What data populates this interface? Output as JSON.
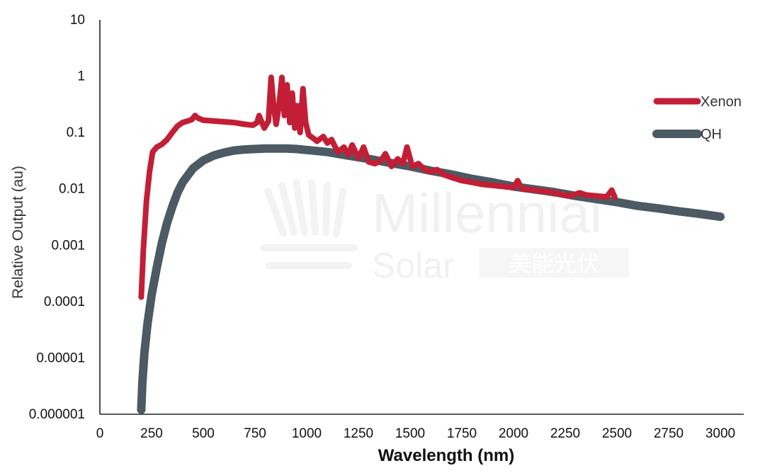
{
  "watermark": {
    "brand": "Millennial",
    "sub": "Solar",
    "cn": "美能光伏"
  },
  "chart_data": {
    "type": "line",
    "xlabel": "Wavelength (nm)",
    "ylabel": "Relative Output (au)",
    "xlim": [
      0,
      3000
    ],
    "xticks": [
      0,
      250,
      500,
      750,
      1000,
      1250,
      1500,
      1750,
      2000,
      2250,
      2500,
      2750,
      3000
    ],
    "ylim": [
      1e-06,
      10
    ],
    "yscale": "log",
    "yticks": [
      {
        "value": 10,
        "label": "10"
      },
      {
        "value": 1,
        "label": "1"
      },
      {
        "value": 0.1,
        "label": "0.1"
      },
      {
        "value": 0.01,
        "label": "0.01"
      },
      {
        "value": 0.001,
        "label": "0.001"
      },
      {
        "value": 0.0001,
        "label": "0.0001"
      },
      {
        "value": 1e-05,
        "label": "0.00001"
      },
      {
        "value": 1e-06,
        "label": "0.000001"
      }
    ],
    "grid": false,
    "legend_position": "right",
    "series": [
      {
        "name": "Xenon",
        "color": "#c21f36",
        "points": [
          [
            200,
            0.00012
          ],
          [
            210,
            0.0008
          ],
          [
            225,
            0.006
          ],
          [
            240,
            0.02
          ],
          [
            255,
            0.045
          ],
          [
            275,
            0.055
          ],
          [
            300,
            0.062
          ],
          [
            325,
            0.075
          ],
          [
            350,
            0.1
          ],
          [
            375,
            0.13
          ],
          [
            400,
            0.15
          ],
          [
            425,
            0.16
          ],
          [
            445,
            0.17
          ],
          [
            460,
            0.2
          ],
          [
            475,
            0.18
          ],
          [
            500,
            0.165
          ],
          [
            550,
            0.16
          ],
          [
            600,
            0.155
          ],
          [
            650,
            0.15
          ],
          [
            700,
            0.14
          ],
          [
            740,
            0.135
          ],
          [
            760,
            0.15
          ],
          [
            770,
            0.2
          ],
          [
            780,
            0.16
          ],
          [
            795,
            0.12
          ],
          [
            815,
            0.16
          ],
          [
            828,
            0.95
          ],
          [
            840,
            0.3
          ],
          [
            852,
            0.14
          ],
          [
            866,
            0.3
          ],
          [
            880,
            0.95
          ],
          [
            892,
            0.2
          ],
          [
            905,
            0.7
          ],
          [
            918,
            0.15
          ],
          [
            930,
            0.5
          ],
          [
            942,
            0.12
          ],
          [
            955,
            0.3
          ],
          [
            968,
            0.1
          ],
          [
            982,
            0.6
          ],
          [
            995,
            0.15
          ],
          [
            1010,
            0.09
          ],
          [
            1030,
            0.08
          ],
          [
            1050,
            0.07
          ],
          [
            1080,
            0.085
          ],
          [
            1100,
            0.065
          ],
          [
            1120,
            0.075
          ],
          [
            1150,
            0.045
          ],
          [
            1180,
            0.055
          ],
          [
            1200,
            0.04
          ],
          [
            1220,
            0.06
          ],
          [
            1250,
            0.035
          ],
          [
            1275,
            0.055
          ],
          [
            1300,
            0.03
          ],
          [
            1330,
            0.028
          ],
          [
            1360,
            0.032
          ],
          [
            1380,
            0.042
          ],
          [
            1410,
            0.025
          ],
          [
            1440,
            0.034
          ],
          [
            1465,
            0.028
          ],
          [
            1485,
            0.055
          ],
          [
            1510,
            0.025
          ],
          [
            1540,
            0.028
          ],
          [
            1570,
            0.022
          ],
          [
            1600,
            0.02
          ],
          [
            1630,
            0.022
          ],
          [
            1660,
            0.018
          ],
          [
            1700,
            0.016
          ],
          [
            1750,
            0.014
          ],
          [
            1800,
            0.013
          ],
          [
            1850,
            0.012
          ],
          [
            1900,
            0.0115
          ],
          [
            1950,
            0.011
          ],
          [
            2000,
            0.0105
          ],
          [
            2020,
            0.014
          ],
          [
            2040,
            0.01
          ],
          [
            2100,
            0.0095
          ],
          [
            2150,
            0.009
          ],
          [
            2200,
            0.0085
          ],
          [
            2240,
            0.0078
          ],
          [
            2280,
            0.0075
          ],
          [
            2320,
            0.0085
          ],
          [
            2350,
            0.0078
          ],
          [
            2400,
            0.0075
          ],
          [
            2450,
            0.0072
          ],
          [
            2475,
            0.0095
          ],
          [
            2490,
            0.007
          ]
        ]
      },
      {
        "name": "QH",
        "color": "#4b5a63",
        "points": [
          [
            200,
            1.2e-06
          ],
          [
            205,
            3.5e-06
          ],
          [
            215,
            1.2e-05
          ],
          [
            230,
            4e-05
          ],
          [
            250,
            0.00013
          ],
          [
            275,
            0.0004
          ],
          [
            300,
            0.0011
          ],
          [
            325,
            0.0025
          ],
          [
            350,
            0.0048
          ],
          [
            375,
            0.0085
          ],
          [
            400,
            0.013
          ],
          [
            450,
            0.023
          ],
          [
            500,
            0.032
          ],
          [
            550,
            0.039
          ],
          [
            600,
            0.044
          ],
          [
            650,
            0.048
          ],
          [
            700,
            0.05
          ],
          [
            750,
            0.051
          ],
          [
            800,
            0.052
          ],
          [
            850,
            0.052
          ],
          [
            900,
            0.052
          ],
          [
            950,
            0.051
          ],
          [
            1000,
            0.049
          ],
          [
            1100,
            0.045
          ],
          [
            1200,
            0.039
          ],
          [
            1300,
            0.034
          ],
          [
            1400,
            0.029
          ],
          [
            1500,
            0.025
          ],
          [
            1600,
            0.021
          ],
          [
            1700,
            0.018
          ],
          [
            1800,
            0.015
          ],
          [
            1900,
            0.013
          ],
          [
            2000,
            0.011
          ],
          [
            2100,
            0.0098
          ],
          [
            2200,
            0.0087
          ],
          [
            2300,
            0.0075
          ],
          [
            2400,
            0.0066
          ],
          [
            2500,
            0.0058
          ],
          [
            2600,
            0.005
          ],
          [
            2700,
            0.0045
          ],
          [
            2800,
            0.004
          ],
          [
            2900,
            0.0036
          ],
          [
            3000,
            0.0032
          ]
        ]
      }
    ]
  }
}
